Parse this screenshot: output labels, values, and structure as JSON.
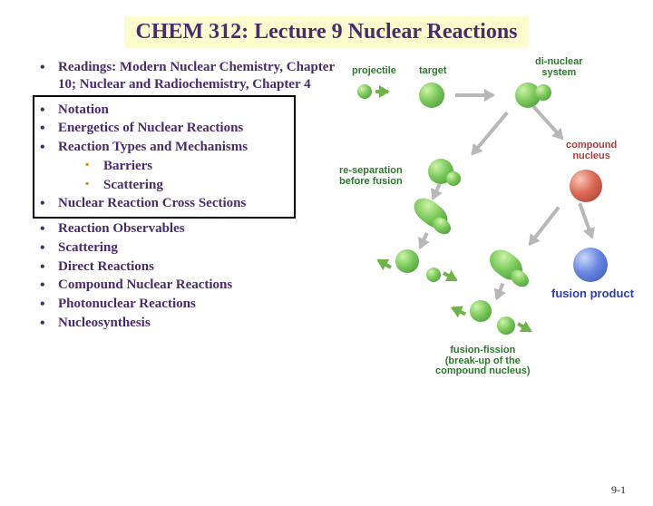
{
  "title": {
    "text": "CHEM 312:  Lecture 9 Nuclear Reactions",
    "color": "#4a2c6d",
    "background": "#fdfccf",
    "fontsize": 24
  },
  "outline": {
    "text_color": "#4a2c6d",
    "bullet_color": "#4a2c6d",
    "sub_bullet_color": "#d88f00",
    "fontsize": 15,
    "items": [
      {
        "text": "Readings:  Modern Nuclear Chemistry, Chapter 10; Nuclear and Radiochemistry, Chapter 4",
        "framed": false
      },
      {
        "text": "Notation",
        "framed": true
      },
      {
        "text": "Energetics of Nuclear Reactions",
        "framed": true
      },
      {
        "text": "Reaction Types and Mechanisms",
        "framed": true,
        "sub": [
          {
            "text": "Barriers"
          },
          {
            "text": "Scattering"
          }
        ]
      },
      {
        "text": "Nuclear Reaction Cross Sections",
        "framed": true
      },
      {
        "text": "Reaction Observables",
        "framed": false
      },
      {
        "text": "Scattering",
        "framed": false
      },
      {
        "text": "Direct Reactions",
        "framed": false
      },
      {
        "text": "Compound Nuclear Reactions",
        "framed": false
      },
      {
        "text": "Photonuclear Reactions",
        "framed": false
      },
      {
        "text": "Nucleosynthesis",
        "framed": false
      }
    ]
  },
  "diagram": {
    "labels": {
      "projectile": "projectile",
      "target": "target",
      "dinuclear": "di-nuclear\nsystem",
      "compound": "compound\nnucleus",
      "resep": "re-separation\nbefore fusion",
      "fusion_product": "fusion product",
      "fission": "fusion-fission\n(break-up of the\ncompound nucleus)"
    },
    "label_fontsize": 11,
    "colors": {
      "green_ball": "#5aab46",
      "red_ball": "#c24f3e",
      "blue_ball": "#4e67cf",
      "arrow_gray": "#b8b8b8",
      "arrow_green": "#6fb34a",
      "label_green": "#2c7a2c",
      "label_red": "#b23a3a",
      "label_blue": "#2a3fb2"
    }
  },
  "footer": "9-1"
}
